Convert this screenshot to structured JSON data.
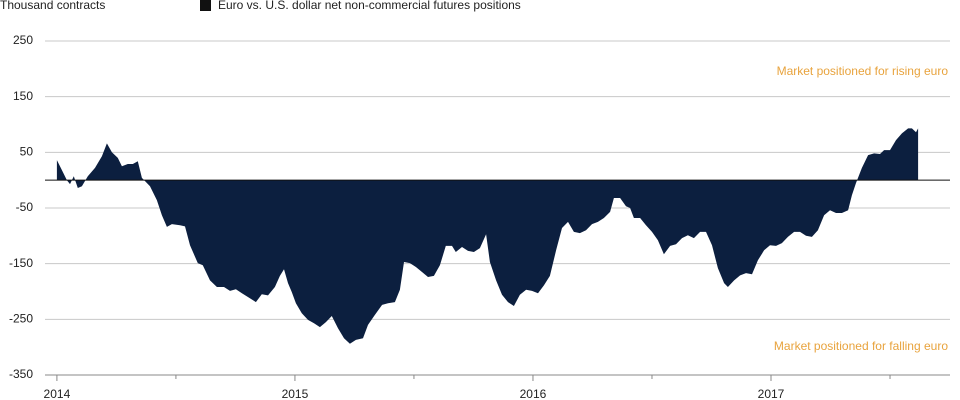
{
  "chart_data": {
    "type": "area",
    "y_label": "Thousand contracts",
    "annotations": [
      "Market positioned for rising euro",
      "Market positioned for falling euro"
    ],
    "series": [
      {
        "name": "Euro vs. U.S. dollar net non-commercial futures positions",
        "color": "#0c1f3f",
        "x": [
          2014.0,
          2014.021,
          2014.042,
          2014.055,
          2014.071,
          2014.088,
          2014.105,
          2014.13,
          2014.16,
          2014.189,
          2014.21,
          2014.231,
          2014.256,
          2014.273,
          2014.298,
          2014.319,
          2014.34,
          2014.357,
          2014.391,
          2014.42,
          2014.441,
          2014.462,
          2014.483,
          2014.517,
          2014.538,
          2014.559,
          2014.592,
          2014.613,
          2014.643,
          2014.672,
          2014.702,
          2014.727,
          2014.752,
          2014.777,
          2014.811,
          2014.836,
          2014.861,
          2014.887,
          2014.916,
          2014.937,
          2014.954,
          2014.971,
          2014.987,
          2015.004,
          2015.029,
          2015.055,
          2015.08,
          2015.105,
          2015.13,
          2015.155,
          2015.181,
          2015.206,
          2015.231,
          2015.256,
          2015.286,
          2015.307,
          2015.336,
          2015.366,
          2015.391,
          2015.42,
          2015.441,
          2015.458,
          2015.483,
          2015.508,
          2015.534,
          2015.559,
          2015.584,
          2015.609,
          2015.634,
          2015.66,
          2015.676,
          2015.702,
          2015.727,
          2015.752,
          2015.777,
          2015.803,
          2015.819,
          2015.845,
          2015.87,
          2015.895,
          2015.92,
          2015.945,
          2015.971,
          2015.996,
          2016.021,
          2016.046,
          2016.071,
          2016.097,
          2016.122,
          2016.147,
          2016.172,
          2016.197,
          2016.223,
          2016.248,
          2016.273,
          2016.298,
          2016.324,
          2016.34,
          2016.366,
          2016.391,
          2016.408,
          2016.424,
          2016.45,
          2016.475,
          2016.5,
          2016.525,
          2016.55,
          2016.576,
          2016.601,
          2016.626,
          2016.651,
          2016.676,
          2016.702,
          2016.727,
          2016.752,
          2016.777,
          2016.803,
          2016.819,
          2016.845,
          2016.87,
          2016.895,
          2016.92,
          2016.945,
          2016.971,
          2016.996,
          2017.021,
          2017.046,
          2017.071,
          2017.097,
          2017.122,
          2017.147,
          2017.172,
          2017.197,
          2017.223,
          2017.248,
          2017.273,
          2017.298,
          2017.324,
          2017.34,
          2017.357,
          2017.382,
          2017.408,
          2017.433,
          2017.458,
          2017.475,
          2017.5,
          2017.525,
          2017.55,
          2017.576,
          2017.592,
          2017.609,
          2017.618
        ],
        "values": [
          36,
          18,
          0,
          -7,
          7,
          -14,
          -11,
          7,
          22,
          43,
          66,
          50,
          40,
          25,
          29,
          29,
          34,
          4,
          -11,
          -36,
          -63,
          -84,
          -79,
          -81,
          -83,
          -117,
          -149,
          -153,
          -180,
          -192,
          -192,
          -199,
          -196,
          -203,
          -212,
          -219,
          -205,
          -207,
          -192,
          -172,
          -160,
          -185,
          -201,
          -221,
          -239,
          -251,
          -257,
          -264,
          -255,
          -244,
          -266,
          -284,
          -294,
          -287,
          -284,
          -260,
          -242,
          -224,
          -221,
          -219,
          -197,
          -147,
          -149,
          -156,
          -165,
          -174,
          -172,
          -153,
          -118,
          -118,
          -129,
          -120,
          -127,
          -129,
          -122,
          -97,
          -147,
          -180,
          -206,
          -219,
          -226,
          -206,
          -197,
          -199,
          -203,
          -189,
          -172,
          -126,
          -86,
          -75,
          -93,
          -95,
          -90,
          -79,
          -75,
          -68,
          -57,
          -32,
          -32,
          -47,
          -50,
          -68,
          -68,
          -81,
          -93,
          -108,
          -133,
          -118,
          -115,
          -104,
          -99,
          -104,
          -93,
          -93,
          -117,
          -158,
          -185,
          -192,
          -180,
          -171,
          -167,
          -169,
          -144,
          -126,
          -117,
          -118,
          -113,
          -102,
          -93,
          -93,
          -100,
          -102,
          -90,
          -63,
          -54,
          -59,
          -59,
          -54,
          -27,
          -5,
          22,
          45,
          48,
          47,
          54,
          54,
          72,
          84,
          93,
          93,
          86,
          93
        ]
      }
    ],
    "xlim": [
      2013.95,
      2017.752
    ],
    "xticks": [
      2014,
      2015,
      2016,
      2017
    ],
    "ylim": [
      -350,
      250
    ],
    "yticks": [
      250,
      150,
      50,
      -50,
      -150,
      -250,
      -350
    ],
    "grid": true
  }
}
